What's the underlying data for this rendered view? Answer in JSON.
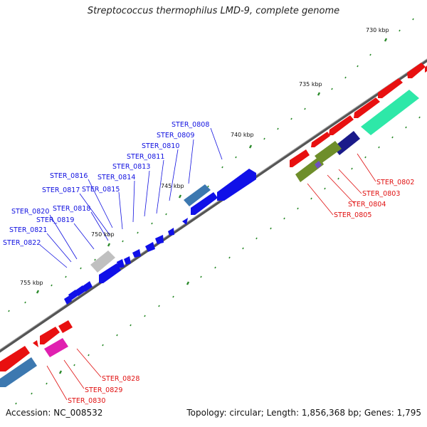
{
  "title": "Streptococcus thermophilus LMD-9, complete genome",
  "footer": {
    "accession": "Accession: NC_008532",
    "summary": "Topology: circular; Length: 1,856,368 bp; Genes: 1,795"
  },
  "colors": {
    "forward_gene": "#e81010",
    "reverse_gene": "#1010e8",
    "label_forward": "#e01010",
    "label_reverse": "#1010e0",
    "backbone": "#777777",
    "tick": "#2a8a2a"
  },
  "scale_labels": [
    "730 kbp",
    "735 kbp",
    "740 kbp",
    "745 kbp",
    "750 kbp",
    "755 kbp"
  ],
  "gene_labels_reverse": [
    "STER_0808",
    "STER_0809",
    "STER_0810",
    "STER_0811",
    "STER_0813",
    "STER_0814",
    "STER_0815",
    "STER_0816",
    "STER_0817",
    "STER_0818",
    "STER_0819",
    "STER_0820",
    "STER_0821",
    "STER_0822"
  ],
  "gene_labels_forward_upper": [
    "STER_0802",
    "STER_0803",
    "STER_0804",
    "STER_0805"
  ],
  "gene_labels_forward_lower": [
    "STER_0828",
    "STER_0829",
    "STER_0830"
  ]
}
